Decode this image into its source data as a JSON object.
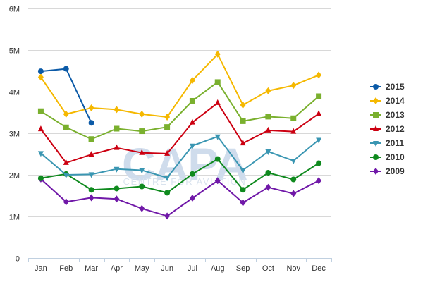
{
  "watermark": {
    "main": "CAPA",
    "sub": "CENTRE FOR AVIATION"
  },
  "chart_data": {
    "type": "line",
    "title": "",
    "xlabel": "",
    "ylabel": "",
    "categories": [
      "Jan",
      "Feb",
      "Mar",
      "Apr",
      "May",
      "Jun",
      "Jul",
      "Aug",
      "Sep",
      "Oct",
      "Nov",
      "Dec"
    ],
    "ylim": [
      0,
      6000000
    ],
    "y_ticks": [
      0,
      1000000,
      2000000,
      3000000,
      4000000,
      5000000,
      6000000
    ],
    "y_tick_labels": [
      "0",
      "1M",
      "2M",
      "3M",
      "4M",
      "5M",
      "6M"
    ],
    "grid": "horizontal",
    "legend_position": "right",
    "series": [
      {
        "name": "2015",
        "color": "#0b5aa7",
        "marker": "circle",
        "values": [
          4490000,
          4550000,
          3250000,
          null,
          null,
          null,
          null,
          null,
          null,
          null,
          null,
          null
        ]
      },
      {
        "name": "2014",
        "color": "#f5b800",
        "marker": "diamond",
        "values": [
          4350000,
          3460000,
          3610000,
          3570000,
          3460000,
          3390000,
          4270000,
          4900000,
          3680000,
          4020000,
          4150000,
          4400000
        ]
      },
      {
        "name": "2013",
        "color": "#7ab02e",
        "marker": "square",
        "values": [
          3530000,
          3140000,
          2860000,
          3110000,
          3050000,
          3150000,
          3780000,
          4230000,
          3290000,
          3400000,
          3360000,
          3890000
        ]
      },
      {
        "name": "2012",
        "color": "#cc0011",
        "marker": "triangle",
        "values": [
          3100000,
          2290000,
          2490000,
          2650000,
          2530000,
          2510000,
          3260000,
          3730000,
          2760000,
          3070000,
          3040000,
          3470000
        ]
      },
      {
        "name": "2011",
        "color": "#3a96b2",
        "marker": "triangle-down",
        "values": [
          2520000,
          2000000,
          2010000,
          2140000,
          2110000,
          1930000,
          2700000,
          2920000,
          2110000,
          2560000,
          2340000,
          2840000
        ]
      },
      {
        "name": "2010",
        "color": "#0f8a1e",
        "marker": "circle",
        "values": [
          1920000,
          2020000,
          1640000,
          1670000,
          1720000,
          1570000,
          2020000,
          2380000,
          1640000,
          2050000,
          1890000,
          2280000
        ]
      },
      {
        "name": "2009",
        "color": "#7018a8",
        "marker": "diamond",
        "values": [
          1900000,
          1350000,
          1450000,
          1420000,
          1190000,
          1010000,
          1440000,
          1860000,
          1330000,
          1700000,
          1550000,
          1860000
        ]
      }
    ]
  }
}
